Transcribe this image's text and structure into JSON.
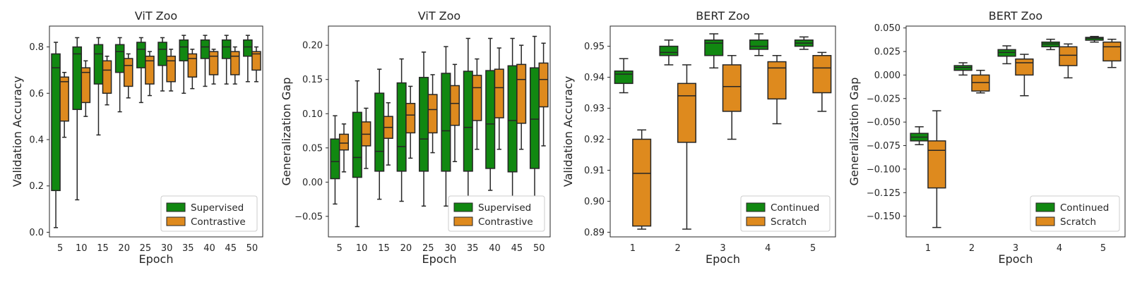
{
  "colors": {
    "series_a": "#118811",
    "series_b": "#de8a1e",
    "box_edge": "#262626"
  },
  "chart_data": [
    {
      "type": "box",
      "title": "ViT Zoo",
      "xlabel": "Epoch",
      "ylabel": "Validation Accuracy",
      "ylim": [
        -0.02,
        0.89
      ],
      "yticks": [
        "0.0",
        "0.2",
        "0.4",
        "0.6",
        "0.8"
      ],
      "ytick_values": [
        0.0,
        0.2,
        0.4,
        0.6,
        0.8
      ],
      "categories": [
        "5",
        "10",
        "15",
        "20",
        "25",
        "30",
        "35",
        "40",
        "45",
        "50"
      ],
      "grid": false,
      "legend": "lower-right",
      "series": [
        {
          "name": "Supervised",
          "color": "#118811",
          "boxes": [
            [
              0.02,
              0.18,
              0.71,
              0.77,
              0.82
            ],
            [
              0.14,
              0.53,
              0.77,
              0.8,
              0.84
            ],
            [
              0.42,
              0.64,
              0.77,
              0.81,
              0.84
            ],
            [
              0.52,
              0.69,
              0.78,
              0.81,
              0.84
            ],
            [
              0.56,
              0.71,
              0.79,
              0.82,
              0.84
            ],
            [
              0.61,
              0.72,
              0.79,
              0.82,
              0.84
            ],
            [
              0.6,
              0.74,
              0.8,
              0.83,
              0.85
            ],
            [
              0.63,
              0.75,
              0.8,
              0.83,
              0.85
            ],
            [
              0.64,
              0.75,
              0.8,
              0.83,
              0.85
            ],
            [
              0.65,
              0.76,
              0.8,
              0.83,
              0.85
            ]
          ]
        },
        {
          "name": "Contrastive",
          "color": "#de8a1e",
          "boxes": [
            [
              0.41,
              0.48,
              0.65,
              0.67,
              0.69
            ],
            [
              0.5,
              0.56,
              0.69,
              0.71,
              0.74
            ],
            [
              0.55,
              0.6,
              0.7,
              0.74,
              0.76
            ],
            [
              0.58,
              0.63,
              0.72,
              0.75,
              0.77
            ],
            [
              0.59,
              0.64,
              0.74,
              0.76,
              0.78
            ],
            [
              0.61,
              0.65,
              0.74,
              0.76,
              0.79
            ],
            [
              0.62,
              0.67,
              0.75,
              0.77,
              0.79
            ],
            [
              0.64,
              0.68,
              0.76,
              0.78,
              0.79
            ],
            [
              0.64,
              0.68,
              0.76,
              0.78,
              0.8
            ],
            [
              0.65,
              0.7,
              0.77,
              0.78,
              0.8
            ]
          ]
        }
      ]
    },
    {
      "type": "box",
      "title": "ViT Zoo",
      "xlabel": "Epoch",
      "ylabel": "Generalization Gap",
      "ylim": [
        -0.08,
        0.228
      ],
      "yticks": [
        "−0.05",
        "0.00",
        "0.05",
        "0.10",
        "0.15",
        "0.20"
      ],
      "ytick_values": [
        -0.05,
        0.0,
        0.05,
        0.1,
        0.15,
        0.2
      ],
      "categories": [
        "5",
        "10",
        "15",
        "20",
        "25",
        "30",
        "35",
        "40",
        "45",
        "50"
      ],
      "grid": false,
      "legend": "lower-right",
      "series": [
        {
          "name": "Supervised",
          "color": "#118811",
          "boxes": [
            [
              -0.032,
              0.005,
              0.03,
              0.063,
              0.097
            ],
            [
              -0.065,
              0.007,
              0.036,
              0.102,
              0.148
            ],
            [
              -0.025,
              0.016,
              0.045,
              0.13,
              0.165
            ],
            [
              -0.028,
              0.016,
              0.052,
              0.145,
              0.18
            ],
            [
              -0.035,
              0.016,
              0.063,
              0.153,
              0.19
            ],
            [
              -0.035,
              0.016,
              0.075,
              0.159,
              0.198
            ],
            [
              -0.035,
              0.016,
              0.08,
              0.162,
              0.21
            ],
            [
              -0.012,
              0.02,
              0.085,
              0.163,
              0.21
            ],
            [
              -0.025,
              0.015,
              0.09,
              0.17,
              0.21
            ],
            [
              -0.03,
              0.02,
              0.092,
              0.167,
              0.213
            ]
          ]
        },
        {
          "name": "Contrastive",
          "color": "#de8a1e",
          "boxes": [
            [
              0.015,
              0.047,
              0.057,
              0.07,
              0.085
            ],
            [
              0.02,
              0.053,
              0.07,
              0.088,
              0.108
            ],
            [
              0.025,
              0.064,
              0.08,
              0.096,
              0.116
            ],
            [
              0.035,
              0.072,
              0.098,
              0.115,
              0.14
            ],
            [
              0.043,
              0.072,
              0.106,
              0.128,
              0.157
            ],
            [
              0.03,
              0.083,
              0.115,
              0.141,
              0.172
            ],
            [
              0.048,
              0.09,
              0.138,
              0.156,
              0.18
            ],
            [
              0.048,
              0.094,
              0.138,
              0.165,
              0.196
            ],
            [
              0.048,
              0.086,
              0.15,
              0.172,
              0.2
            ],
            [
              0.053,
              0.11,
              0.15,
              0.174,
              0.203
            ]
          ]
        }
      ]
    },
    {
      "type": "box",
      "title": "BERT Zoo",
      "xlabel": "Epoch",
      "ylabel": "Validation Accuracy",
      "ylim": [
        0.8885,
        0.9565
      ],
      "yticks": [
        "0.89",
        "0.90",
        "0.91",
        "0.92",
        "0.93",
        "0.94",
        "0.95"
      ],
      "ytick_values": [
        0.89,
        0.9,
        0.91,
        0.92,
        0.93,
        0.94,
        0.95
      ],
      "categories": [
        "1",
        "2",
        "3",
        "4",
        "5"
      ],
      "grid": false,
      "legend": "lower-right",
      "series": [
        {
          "name": "Continued",
          "color": "#118811",
          "boxes": [
            [
              0.935,
              0.938,
              0.941,
              0.942,
              0.946
            ],
            [
              0.944,
              0.947,
              0.948,
              0.95,
              0.952
            ],
            [
              0.943,
              0.947,
              0.951,
              0.952,
              0.954
            ],
            [
              0.947,
              0.949,
              0.95,
              0.952,
              0.954
            ],
            [
              0.949,
              0.95,
              0.951,
              0.952,
              0.953
            ]
          ]
        },
        {
          "name": "Scratch",
          "color": "#de8a1e",
          "boxes": [
            [
              0.891,
              0.892,
              0.909,
              0.92,
              0.923
            ],
            [
              0.891,
              0.919,
              0.934,
              0.938,
              0.944
            ],
            [
              0.92,
              0.929,
              0.937,
              0.944,
              0.947
            ],
            [
              0.925,
              0.933,
              0.943,
              0.945,
              0.947
            ],
            [
              0.929,
              0.935,
              0.943,
              0.947,
              0.948
            ]
          ]
        }
      ]
    },
    {
      "type": "box",
      "title": "BERT Zoo",
      "xlabel": "Epoch",
      "ylabel": "Generalization Gap",
      "ylim": [
        -0.172,
        0.052
      ],
      "yticks": [
        "−0.150",
        "−0.125",
        "−0.100",
        "−0.075",
        "−0.050",
        "−0.025",
        "0.000",
        "0.025",
        "0.050"
      ],
      "ytick_values": [
        -0.15,
        -0.125,
        -0.1,
        -0.075,
        -0.05,
        -0.025,
        0.0,
        0.025,
        0.05
      ],
      "categories": [
        "1",
        "2",
        "3",
        "4",
        "5"
      ],
      "grid": false,
      "legend": "lower-right",
      "series": [
        {
          "name": "Continued",
          "color": "#118811",
          "boxes": [
            [
              -0.074,
              -0.07,
              -0.066,
              -0.062,
              -0.055
            ],
            [
              0.0,
              0.005,
              0.008,
              0.01,
              0.013
            ],
            [
              0.012,
              0.02,
              0.024,
              0.027,
              0.031
            ],
            [
              0.027,
              0.03,
              0.033,
              0.035,
              0.038
            ],
            [
              0.035,
              0.037,
              0.039,
              0.04,
              0.041
            ]
          ]
        },
        {
          "name": "Scratch",
          "color": "#de8a1e",
          "boxes": [
            [
              -0.162,
              -0.12,
              -0.08,
              -0.07,
              -0.038
            ],
            [
              -0.019,
              -0.017,
              -0.008,
              0.0,
              0.005
            ],
            [
              -0.022,
              0.0,
              0.013,
              0.017,
              0.022
            ],
            [
              -0.003,
              0.01,
              0.021,
              0.03,
              0.033
            ],
            [
              0.008,
              0.015,
              0.03,
              0.035,
              0.038
            ]
          ]
        }
      ]
    }
  ]
}
